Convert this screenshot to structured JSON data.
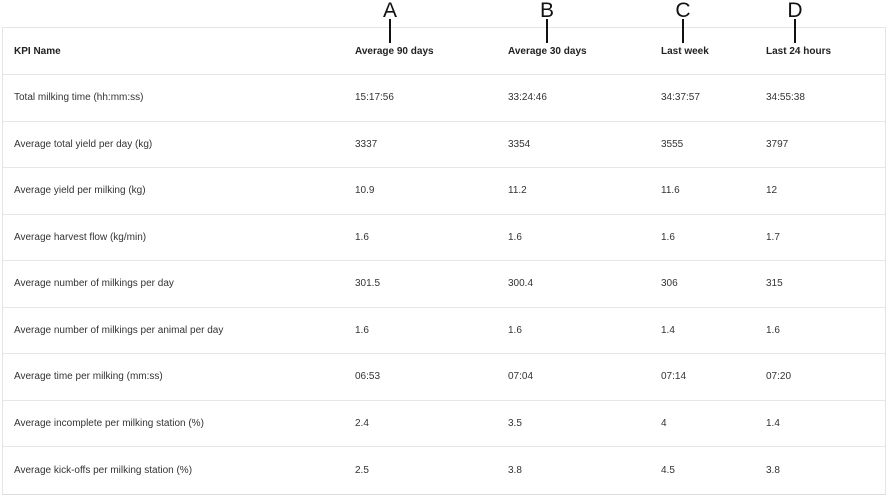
{
  "annotations": [
    "A",
    "B",
    "C",
    "D"
  ],
  "table": {
    "headers": [
      "KPI Name",
      "Average 90 days",
      "Average 30 days",
      "Last week",
      "Last 24 hours"
    ],
    "rows": [
      [
        "Total milking time (hh:mm:ss)",
        "15:17:56",
        "33:24:46",
        "34:37:57",
        "34:55:38"
      ],
      [
        "Average total yield per day (kg)",
        "3337",
        "3354",
        "3555",
        "3797"
      ],
      [
        "Average yield per milking (kg)",
        "10.9",
        "11.2",
        "11.6",
        "12"
      ],
      [
        "Average harvest flow (kg/min)",
        "1.6",
        "1.6",
        "1.6",
        "1.7"
      ],
      [
        "Average number of milkings per day",
        "301.5",
        "300.4",
        "306",
        "315"
      ],
      [
        "Average number of milkings per animal per day",
        "1.6",
        "1.6",
        "1.4",
        "1.6"
      ],
      [
        "Average time per milking (mm:ss)",
        "06:53",
        "07:04",
        "07:14",
        "07:20"
      ],
      [
        "Average incomplete per milking station (%)",
        "2.4",
        "3.5",
        "4",
        "1.4"
      ],
      [
        "Average kick-offs per milking station (%)",
        "2.5",
        "3.8",
        "4.5",
        "3.8"
      ]
    ]
  }
}
